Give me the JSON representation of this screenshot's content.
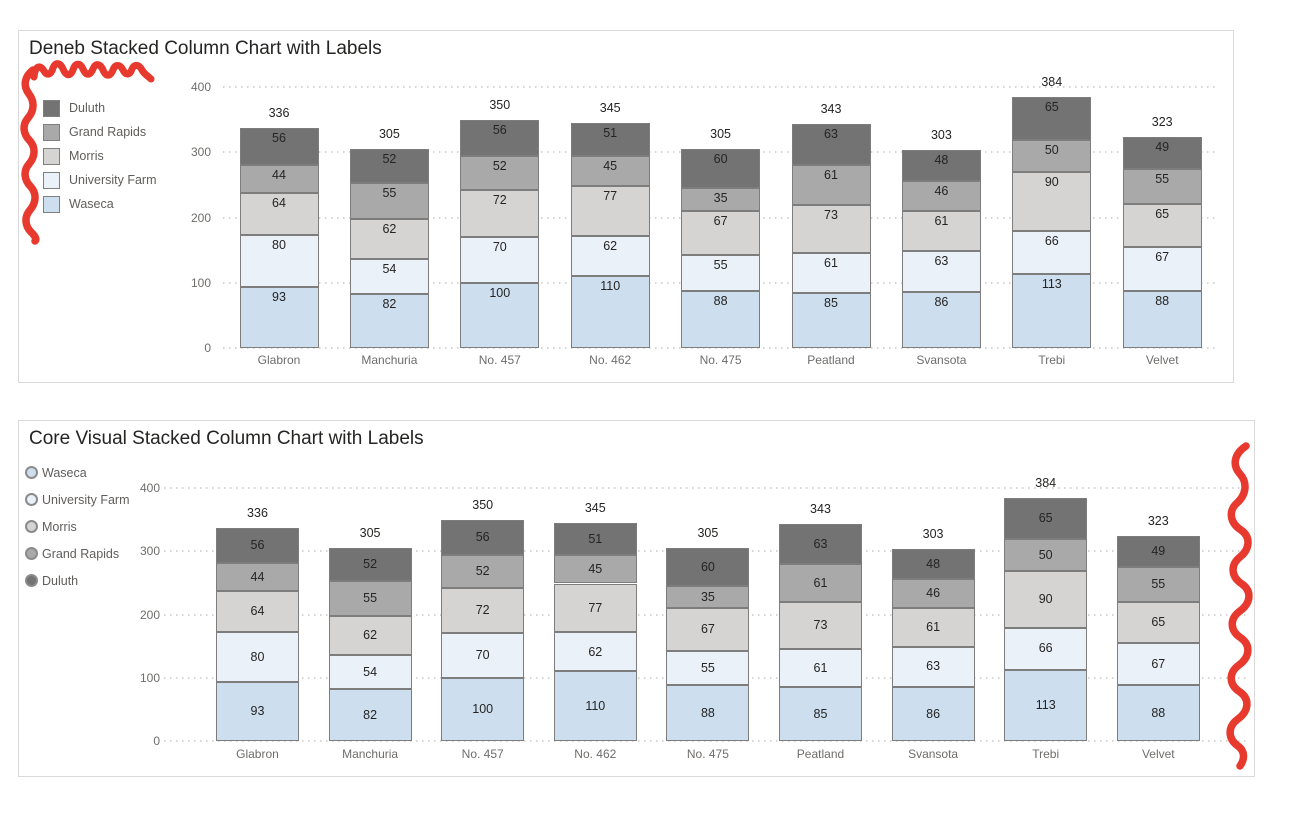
{
  "page": {
    "background": "#ffffff"
  },
  "annotations": {
    "color": "#e8392e",
    "items": [
      "scribble-top-left-horizontal",
      "scribble-left-vertical",
      "scribble-right-vertical"
    ]
  },
  "styles": {
    "segment_border": "#7d7d7d",
    "axis_text": "#6f6d6b",
    "label_text": "#252423",
    "card_border": "#d9d9d9"
  },
  "charts": [
    {
      "title": "Deneb Stacked Column Chart with Labels",
      "legend": {
        "marker": "square",
        "position": "left",
        "items": [
          {
            "label": "Duluth",
            "color": "#737373"
          },
          {
            "label": "Grand Rapids",
            "color": "#a9a9a9"
          },
          {
            "label": "Morris",
            "color": "#d6d4d2"
          },
          {
            "label": "University Farm",
            "color": "#eaf1f9"
          },
          {
            "label": "Waseca",
            "color": "#cddeee"
          }
        ]
      },
      "chart_data": {
        "type": "bar",
        "stacked": true,
        "title": "Deneb Stacked Column Chart with Labels",
        "categories": [
          "Glabron",
          "Manchuria",
          "No. 457",
          "No. 462",
          "No. 475",
          "Peatland",
          "Svansota",
          "Trebi",
          "Velvet"
        ],
        "series": [
          {
            "name": "Waseca",
            "color": "#cddeee",
            "values": [
              93,
              82,
              100,
              110,
              88,
              85,
              86,
              113,
              88
            ]
          },
          {
            "name": "University Farm",
            "color": "#eaf1f9",
            "values": [
              80,
              54,
              70,
              62,
              55,
              61,
              63,
              66,
              67
            ]
          },
          {
            "name": "Morris",
            "color": "#d6d4d2",
            "values": [
              64,
              62,
              72,
              77,
              67,
              73,
              61,
              90,
              65
            ]
          },
          {
            "name": "Grand Rapids",
            "color": "#a9a9a9",
            "values": [
              44,
              55,
              52,
              45,
              35,
              61,
              46,
              50,
              55
            ]
          },
          {
            "name": "Duluth",
            "color": "#737373",
            "values": [
              56,
              52,
              56,
              51,
              60,
              63,
              48,
              65,
              49
            ]
          }
        ],
        "totals": [
          336,
          305,
          350,
          345,
          305,
          343,
          303,
          384,
          323
        ],
        "yticks": [
          0,
          100,
          200,
          300,
          400
        ],
        "ylim": [
          0,
          400
        ],
        "grid": "dotted-horizontal",
        "legend_position": "left",
        "data_labels": "inside-top"
      }
    },
    {
      "title": "Core Visual Stacked Column Chart with Labels",
      "legend": {
        "marker": "circle",
        "position": "left",
        "items": [
          {
            "label": "Waseca",
            "color": "#cddeee"
          },
          {
            "label": "University Farm",
            "color": "#eaf1f9"
          },
          {
            "label": "Morris",
            "color": "#d6d4d2"
          },
          {
            "label": "Grand Rapids",
            "color": "#a9a9a9"
          },
          {
            "label": "Duluth",
            "color": "#737373"
          }
        ]
      },
      "chart_data": {
        "type": "bar",
        "stacked": true,
        "title": "Core Visual Stacked Column Chart with Labels",
        "categories": [
          "Glabron",
          "Manchuria",
          "No. 457",
          "No. 462",
          "No. 475",
          "Peatland",
          "Svansota",
          "Trebi",
          "Velvet"
        ],
        "series": [
          {
            "name": "Waseca",
            "color": "#cddeee",
            "values": [
              93,
              82,
              100,
              110,
              88,
              85,
              86,
              113,
              88
            ]
          },
          {
            "name": "University Farm",
            "color": "#eaf1f9",
            "values": [
              80,
              54,
              70,
              62,
              55,
              61,
              63,
              66,
              67
            ]
          },
          {
            "name": "Morris",
            "color": "#d6d4d2",
            "values": [
              64,
              62,
              72,
              77,
              67,
              73,
              61,
              90,
              65
            ]
          },
          {
            "name": "Grand Rapids",
            "color": "#a9a9a9",
            "values": [
              44,
              55,
              52,
              45,
              35,
              61,
              46,
              50,
              55
            ]
          },
          {
            "name": "Duluth",
            "color": "#737373",
            "values": [
              56,
              52,
              56,
              51,
              60,
              63,
              48,
              65,
              49
            ]
          }
        ],
        "totals": [
          336,
          305,
          350,
          345,
          305,
          343,
          303,
          384,
          323
        ],
        "yticks": [
          0,
          100,
          200,
          300,
          400
        ],
        "ylim": [
          0,
          400
        ],
        "grid": "dotted-horizontal",
        "legend_position": "left",
        "data_labels": "inside-center"
      }
    }
  ]
}
